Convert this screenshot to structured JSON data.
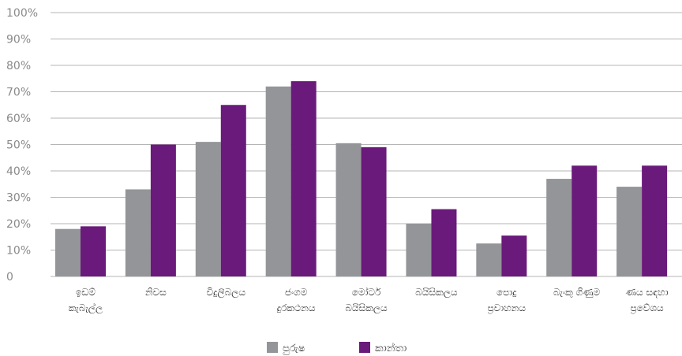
{
  "chart_data": {
    "type": "bar",
    "categories": [
      [
        "ඉඩම්",
        "කැබැල්ල"
      ],
      [
        "නිවස"
      ],
      [
        "විදුලිබලය"
      ],
      [
        "ජංගම",
        "දුරකථනය"
      ],
      [
        "මෝටර්",
        "බයිසිකලය"
      ],
      [
        "බයිසිකලය"
      ],
      [
        "පොදු",
        "ප්‍රවාහනය"
      ],
      [
        "බැංකු ගිණුම"
      ],
      [
        "ණය සඳහා",
        "ප්‍රවේශය"
      ]
    ],
    "series": [
      {
        "name": "පුරුෂ",
        "color": "#939598",
        "values": [
          18,
          33,
          51,
          72,
          50.5,
          20,
          12.5,
          37,
          34
        ]
      },
      {
        "name": "කාන්තා",
        "color": "#6a1a7a",
        "values": [
          19,
          50,
          65,
          74,
          49,
          25.5,
          15.5,
          42,
          42
        ]
      }
    ],
    "ylim": [
      0,
      100
    ],
    "y_ticks": [
      "0",
      "10%",
      "20%",
      "30%",
      "40%",
      "50%",
      "60%",
      "70%",
      "80%",
      "90%",
      "100%"
    ],
    "grid": true,
    "legend": "bottom-center"
  }
}
